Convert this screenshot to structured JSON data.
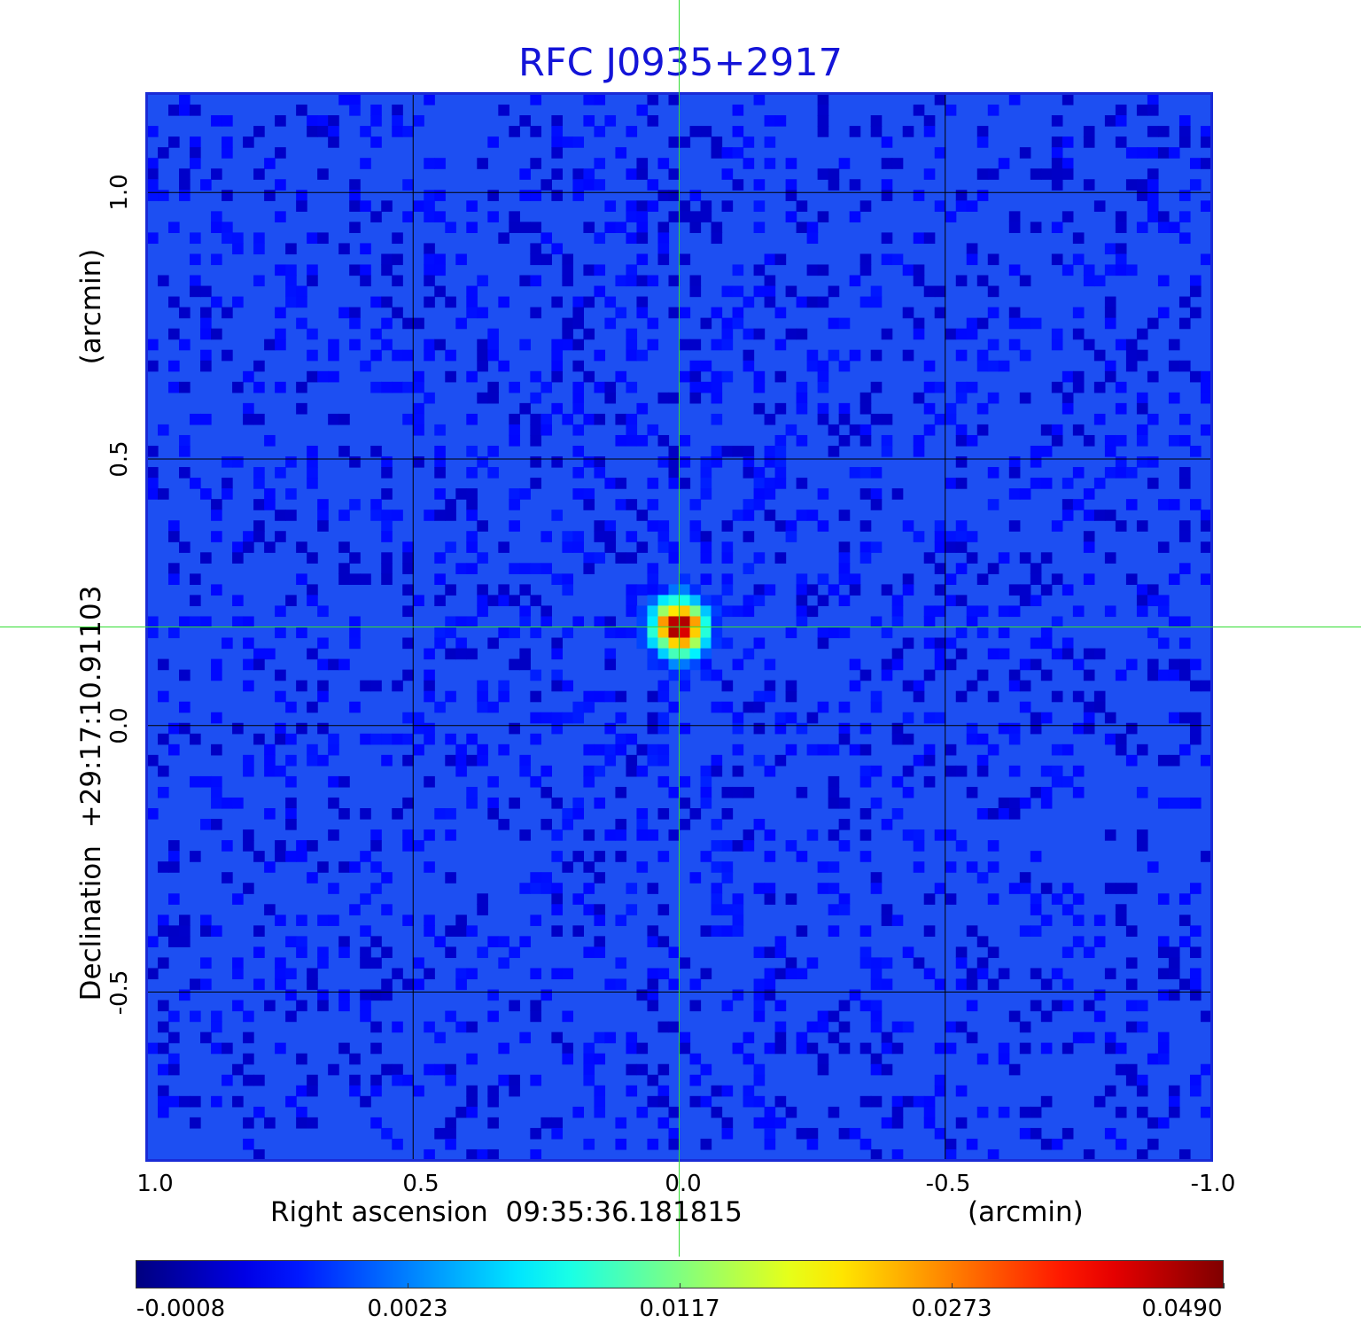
{
  "chart_data": {
    "type": "heatmap",
    "title": "RFC J0935+2917",
    "xlabel": "Right ascension  09:35:36.181815",
    "xunit": "(arcmin)",
    "ylabel": "Declination  +29:17:10.91103",
    "yunit": "(arcmin)",
    "x_ticks": [
      "1.0",
      "0.5",
      "0.0",
      "-0.5",
      "-1.0"
    ],
    "y_ticks": [
      "1.0",
      "0.5",
      "0.0",
      "-0.5"
    ],
    "xlim": [
      1.0,
      -1.0
    ],
    "ylim": [
      -0.815,
      1.185
    ],
    "grid": true,
    "source_peak": {
      "x": 0.0,
      "y": 0.185,
      "value": 0.049
    },
    "crosshair": {
      "x": 0.0,
      "y": 0.185,
      "color": "#33dd33"
    },
    "colormap": "jet",
    "colorbar": {
      "ticks": [
        "-0.0008",
        "0.0023",
        "0.0117",
        "0.0273",
        "0.0490"
      ],
      "min": -0.0008,
      "max": 0.049
    },
    "background_level": 0.0
  }
}
